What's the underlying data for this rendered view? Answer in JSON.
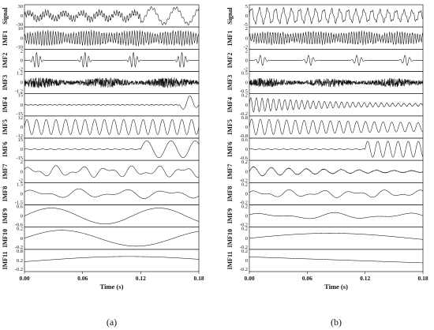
{
  "chart_data": [
    {
      "type": "line",
      "panel_label": "(a)",
      "xlabel": "Time (s)",
      "xlim": [
        0,
        0.18
      ],
      "xticks": [
        "0.00",
        "0.06",
        "0.12",
        "0.18"
      ],
      "rows": [
        {
          "name": "Signal",
          "ylim": [
            -30,
            30
          ],
          "yticks": [
            "30",
            "0",
            "-30"
          ],
          "wave": "signal",
          "amp": 0.45,
          "freq": 55,
          "burst": [
            0.12,
            0.14
          ]
        },
        {
          "name": "IMF1",
          "ylim": [
            -10,
            10
          ],
          "yticks": [
            "10",
            "0",
            "-10"
          ],
          "wave": "hf",
          "amp": 0.7,
          "freq": 380
        },
        {
          "name": "IMF2",
          "ylim": [
            -2,
            2
          ],
          "yticks": [
            "2",
            "0",
            "-2"
          ],
          "wave": "bursts",
          "amp": 0.8,
          "freq": 260
        },
        {
          "name": "IMF3",
          "ylim": [
            -1.2,
            1.2
          ],
          "yticks": [
            "1.2",
            "0",
            "-1.2"
          ],
          "wave": "noise",
          "amp": 0.8,
          "freq": 200
        },
        {
          "name": "IMF4",
          "ylim": [
            -15,
            15
          ],
          "yticks": [
            "15",
            "0",
            "-15"
          ],
          "wave": "endburst",
          "amp": 0.9,
          "freq": 60
        },
        {
          "name": "IMF5",
          "ylim": [
            -12,
            12
          ],
          "yticks": [
            "12",
            "0",
            "-12"
          ],
          "wave": "sine",
          "amp": 0.75,
          "freq": 100
        },
        {
          "name": "IMF6",
          "ylim": [
            -15,
            15
          ],
          "yticks": [
            "15",
            "0",
            "-15"
          ],
          "wave": "late",
          "amp": 0.85,
          "freq": 40
        },
        {
          "name": "IMF7",
          "ylim": [
            -2,
            2
          ],
          "yticks": [
            "2",
            "0",
            "-2"
          ],
          "wave": "mixed",
          "amp": 0.6,
          "freq": 38
        },
        {
          "name": "IMF8",
          "ylim": [
            -1.5,
            1.5
          ],
          "yticks": [
            "1.5",
            "0",
            "-1.5"
          ],
          "wave": "mixed",
          "amp": 0.5,
          "freq": 22
        },
        {
          "name": "IMF9",
          "ylim": [
            -0.6,
            0.6
          ],
          "yticks": [
            "0.6",
            "0",
            "-0.6"
          ],
          "wave": "sine",
          "amp": 0.8,
          "freq": 9
        },
        {
          "name": "IMF10",
          "ylim": [
            -0.2,
            0.2
          ],
          "yticks": [
            "0.2",
            "0",
            "-0.2"
          ],
          "wave": "sine",
          "amp": 0.8,
          "freq": 6.5
        },
        {
          "name": "IMF11",
          "ylim": [
            -0.2,
            0.8
          ],
          "yticks": [
            "0.8",
            "0.2",
            "-0.2"
          ],
          "wave": "trend",
          "amp": 0.8,
          "freq": 1
        }
      ]
    },
    {
      "type": "line",
      "panel_label": "(b)",
      "xlabel": "Time (s)",
      "xlim": [
        0,
        0.18
      ],
      "xticks": [
        "0.00",
        "0.06",
        "0.12",
        "0.18"
      ],
      "rows": [
        {
          "name": "Signal",
          "ylim": [
            -5,
            5
          ],
          "yticks": [
            "5",
            "0",
            "-5"
          ],
          "wave": "signalb",
          "amp": 0.75,
          "freq": 120
        },
        {
          "name": "IMF1",
          "ylim": [
            -2,
            2
          ],
          "yticks": [
            "2",
            "0",
            "-2"
          ],
          "wave": "hf",
          "amp": 0.6,
          "freq": 380
        },
        {
          "name": "IMF2",
          "ylim": [
            -2,
            2
          ],
          "yticks": [
            "2",
            "0",
            "-2"
          ],
          "wave": "bursts",
          "amp": 0.55,
          "freq": 200
        },
        {
          "name": "IMF3",
          "ylim": [
            -0.5,
            0.5
          ],
          "yticks": [
            "0.5",
            "0",
            "-0.5"
          ],
          "wave": "noise",
          "amp": 0.7,
          "freq": 220
        },
        {
          "name": "IMF4",
          "ylim": [
            -0.2,
            0.2
          ],
          "yticks": [
            "0.2",
            "0",
            "-0.2"
          ],
          "wave": "decay",
          "amp": 0.75,
          "freq": 170
        },
        {
          "name": "IMF5",
          "ylim": [
            -0.8,
            0.8
          ],
          "yticks": [
            "0.8",
            "0",
            "-0.8"
          ],
          "wave": "decaysine",
          "amp": 0.8,
          "freq": 110
        },
        {
          "name": "IMF6",
          "ylim": [
            -0.6,
            0.6
          ],
          "yticks": [
            "0.6",
            "0",
            "-0.6"
          ],
          "wave": "late",
          "amp": 0.8,
          "freq": 95
        },
        {
          "name": "IMF7",
          "ylim": [
            -0.2,
            0.2
          ],
          "yticks": [
            "0.2",
            "0",
            "-0.2"
          ],
          "wave": "decay",
          "amp": 0.5,
          "freq": 55
        },
        {
          "name": "IMF8",
          "ylim": [
            -0.2,
            0.2
          ],
          "yticks": [
            "0.2",
            "0",
            "-0.2"
          ],
          "wave": "mixed",
          "amp": 0.4,
          "freq": 30
        },
        {
          "name": "IMF9",
          "ylim": [
            -0.2,
            0.2
          ],
          "yticks": [
            "0.2",
            "0",
            "-0.2"
          ],
          "wave": "mixed",
          "amp": 0.35,
          "freq": 14
        },
        {
          "name": "IMF10",
          "ylim": [
            -0.2,
            0.2
          ],
          "yticks": [
            "0.2",
            "0",
            "-0.2"
          ],
          "wave": "sine",
          "amp": 0.5,
          "freq": 3
        },
        {
          "name": "IMF11",
          "ylim": [
            -0.2,
            0.2
          ],
          "yticks": [
            "0.2",
            "0",
            "-0.2"
          ],
          "wave": "trendb",
          "amp": 0.6,
          "freq": 1
        }
      ]
    }
  ]
}
